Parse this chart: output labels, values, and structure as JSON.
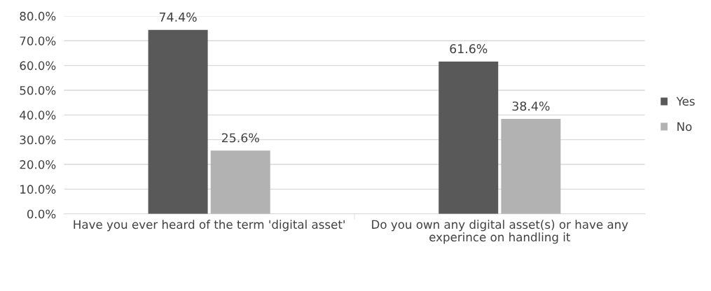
{
  "chart_data": {
    "type": "bar",
    "categories": [
      "Have you ever heard of the term 'digital asset'",
      "Do you own any digital asset(s) or have any experince on handling it"
    ],
    "series": [
      {
        "name": "Yes",
        "color": "#595959",
        "values": [
          74.4,
          61.6
        ],
        "value_labels": [
          "74.4%",
          "61.6%"
        ]
      },
      {
        "name": "No",
        "color": "#b2b2b2",
        "values": [
          25.6,
          38.4
        ],
        "value_labels": [
          "25.6%",
          "38.4%"
        ]
      }
    ],
    "ylim": [
      0,
      80
    ],
    "yticks": [
      {
        "value": 0,
        "label": "0.0%"
      },
      {
        "value": 10,
        "label": "10.0%"
      },
      {
        "value": 20,
        "label": "20.0%"
      },
      {
        "value": 30,
        "label": "30.0%"
      },
      {
        "value": 40,
        "label": "40.0%"
      },
      {
        "value": 50,
        "label": "50.0%"
      },
      {
        "value": 60,
        "label": "60.0%"
      },
      {
        "value": 70,
        "label": "70.0%"
      },
      {
        "value": 80,
        "label": "80.0%"
      }
    ],
    "grid": "y",
    "legend": "right"
  }
}
